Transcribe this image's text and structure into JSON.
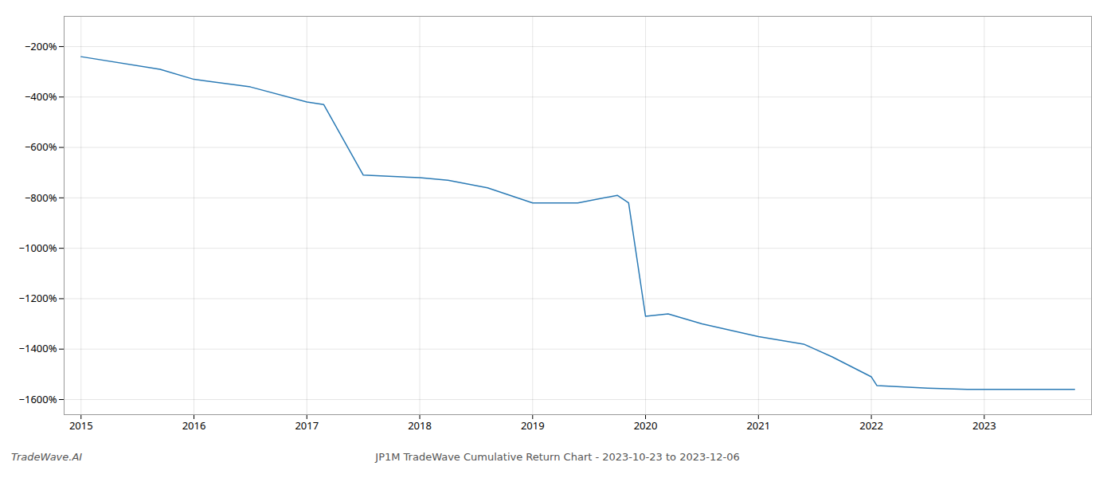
{
  "chart_data": {
    "type": "line",
    "title": "JP1M TradeWave Cumulative Return Chart - 2023-10-23 to 2023-12-06",
    "annotations": [
      "TradeWave.AI"
    ],
    "x": [
      2015.0,
      2015.7,
      2016.0,
      2016.5,
      2017.0,
      2017.15,
      2017.5,
      2018.0,
      2018.25,
      2018.6,
      2019.0,
      2019.4,
      2019.75,
      2019.85,
      2020.0,
      2020.2,
      2020.5,
      2021.0,
      2021.4,
      2021.65,
      2022.0,
      2022.05,
      2022.5,
      2022.85,
      2023.0,
      2023.8
    ],
    "values": [
      -240,
      -290,
      -330,
      -360,
      -420,
      -430,
      -710,
      -720,
      -730,
      -760,
      -820,
      -820,
      -790,
      -820,
      -1270,
      -1260,
      -1300,
      -1350,
      -1380,
      -1430,
      -1510,
      -1545,
      -1555,
      -1560,
      -1560,
      -1560
    ],
    "color": "#2a7ab5",
    "xlim": [
      2014.85,
      2023.95
    ],
    "ylim": [
      -1660,
      -80
    ],
    "xticks": [
      2015,
      2016,
      2017,
      2018,
      2019,
      2020,
      2021,
      2022,
      2023
    ],
    "yticks": [
      {
        "value": -200,
        "label": "−200%"
      },
      {
        "value": -400,
        "label": "−400%"
      },
      {
        "value": -600,
        "label": "−600%"
      },
      {
        "value": -800,
        "label": "−800%"
      },
      {
        "value": -1000,
        "label": "−1000%"
      },
      {
        "value": -1200,
        "label": "−1200%"
      },
      {
        "value": -1400,
        "label": "−1400%"
      },
      {
        "value": -1600,
        "label": "−1600%"
      }
    ],
    "grid": true
  }
}
